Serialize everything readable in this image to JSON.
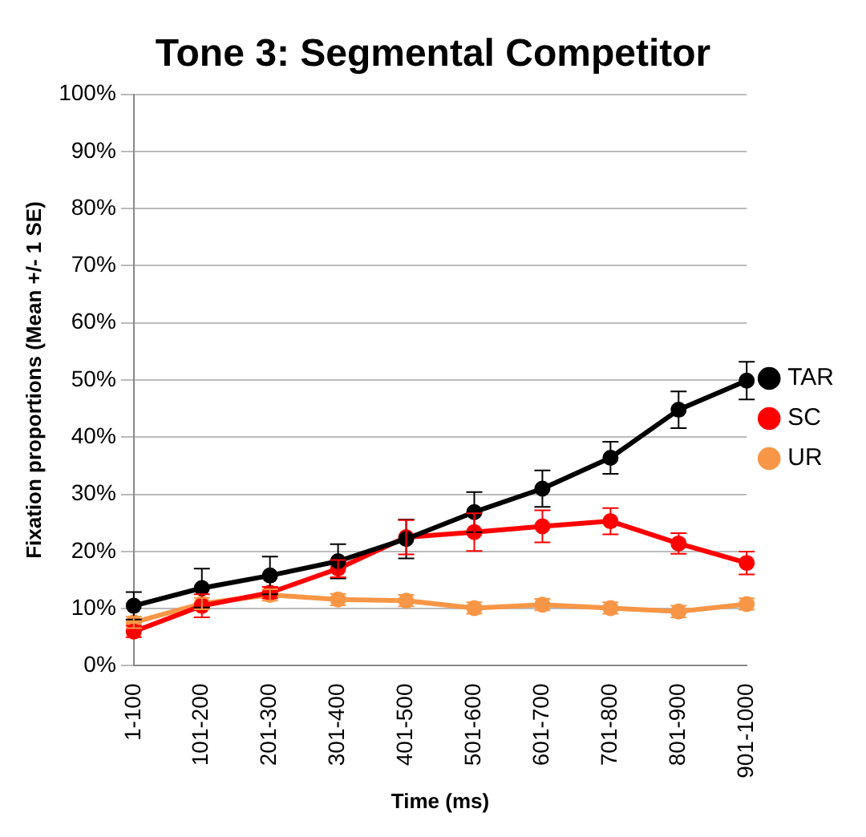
{
  "chart_data": {
    "type": "line",
    "title": "Tone 3: Segmental Competitor",
    "xlabel": "Time (ms)",
    "ylabel": "Fixation proportions (Mean +/- 1 SE)",
    "categories": [
      "1-100",
      "101-200",
      "201-300",
      "301-400",
      "401-500",
      "501-600",
      "601-700",
      "701-800",
      "801-900",
      "901-1000"
    ],
    "series": [
      {
        "name": "TAR",
        "color": "#000000",
        "values": [
          10.5,
          13.6,
          15.8,
          18.3,
          22.2,
          26.9,
          31,
          36.4,
          44.8,
          49.9
        ],
        "errors": [
          2.4,
          3.4,
          3.3,
          3,
          3.4,
          3.5,
          3.2,
          2.8,
          3.2,
          3.3
        ]
      },
      {
        "name": "SC",
        "color": "#ff0000",
        "values": [
          6,
          10.5,
          12.8,
          17,
          22.5,
          23.4,
          24.4,
          25.3,
          21.4,
          18
        ],
        "errors": [
          1,
          2,
          1,
          1.5,
          3,
          3.3,
          2.8,
          2.3,
          1.8,
          2
        ]
      },
      {
        "name": "UR",
        "color": "#f79646",
        "values": [
          7.6,
          10.9,
          12.4,
          11.6,
          11.4,
          10.1,
          10.7,
          10.1,
          9.5,
          10.8
        ],
        "errors": [
          1,
          1,
          1,
          1,
          1,
          1,
          1,
          1,
          1,
          1
        ]
      }
    ],
    "ylim": [
      0,
      100
    ],
    "yticks": [
      {
        "value": 0,
        "label": "0%"
      },
      {
        "value": 10,
        "label": "10%"
      },
      {
        "value": 20,
        "label": "20%"
      },
      {
        "value": 30,
        "label": "30%"
      },
      {
        "value": 40,
        "label": "40%"
      },
      {
        "value": 50,
        "label": "50%"
      },
      {
        "value": 60,
        "label": "60%"
      },
      {
        "value": 70,
        "label": "70%"
      },
      {
        "value": 80,
        "label": "80%"
      },
      {
        "value": 90,
        "label": "90%"
      },
      {
        "value": 100,
        "label": "100%"
      }
    ],
    "grid": "y",
    "legend": "right",
    "marker": "circle",
    "line_style": "solid"
  }
}
